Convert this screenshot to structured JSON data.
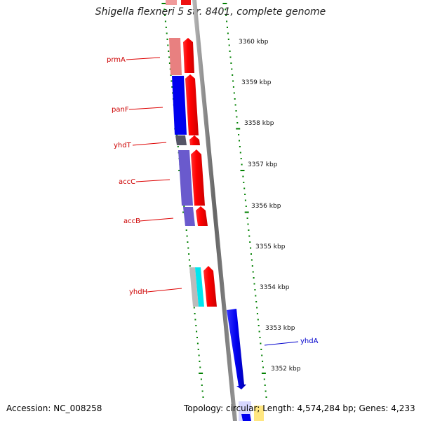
{
  "title": "Shigella flexneri 5 str. 8401, complete genome",
  "footer": {
    "accession_text": "Accession: NC_008258",
    "stats_text": "Topology: circular; Length: 4,574,284 bp; Genes: 4,233"
  },
  "colors": {
    "forward_gene": "#ff0000",
    "reverse_gene": "#0000ee",
    "gene_label_red": "#cc0000",
    "gene_label_blue": "#0000cc",
    "backbone": "#777777",
    "tick": "#008000"
  },
  "kbp_ticks": [
    "3360 kbp",
    "3359 kbp",
    "3358 kbp",
    "3357 kbp",
    "3356 kbp",
    "3355 kbp",
    "3354 kbp",
    "3353 kbp",
    "3352 kbp"
  ],
  "genes": [
    {
      "name": "prmA",
      "strand": "forward"
    },
    {
      "name": "panF",
      "strand": "forward"
    },
    {
      "name": "yhdT",
      "strand": "forward"
    },
    {
      "name": "accC",
      "strand": "forward"
    },
    {
      "name": "accB",
      "strand": "forward"
    },
    {
      "name": "yhdH",
      "strand": "forward"
    },
    {
      "name": "yhdA",
      "strand": "reverse"
    }
  ]
}
